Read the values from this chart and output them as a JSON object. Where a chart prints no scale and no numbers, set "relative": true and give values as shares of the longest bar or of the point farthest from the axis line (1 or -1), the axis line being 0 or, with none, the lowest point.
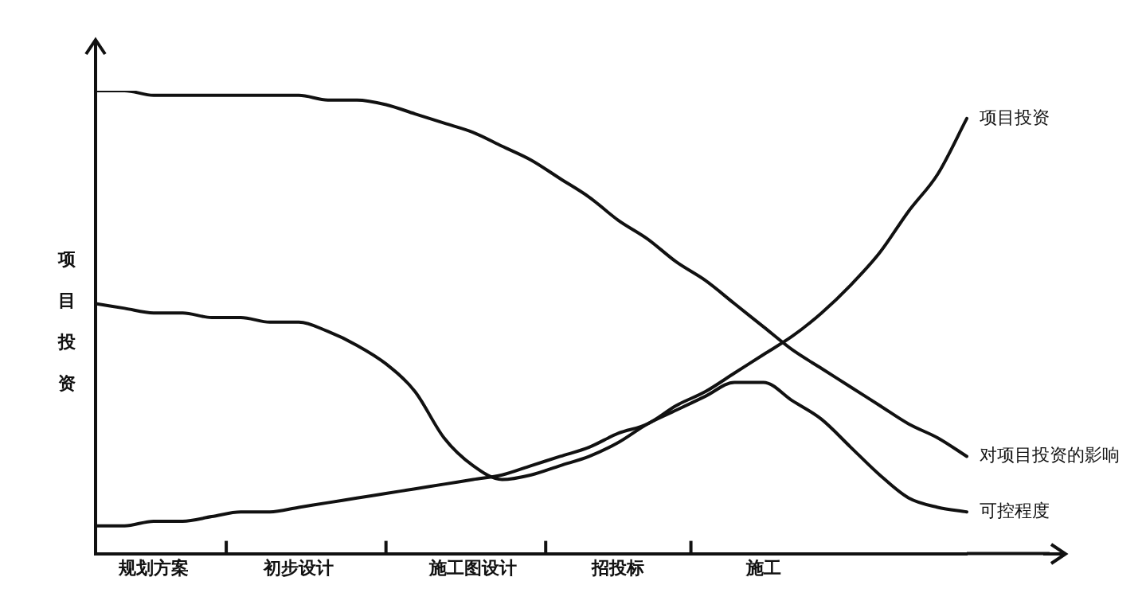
{
  "chart_data": {
    "type": "line",
    "relative": true,
    "ylabel": "项目投资",
    "grid": false,
    "legend": false,
    "marker": "none",
    "line_style": "solid",
    "categories": [
      null,
      null,
      "规划方案",
      null,
      null,
      null,
      null,
      "初步设计",
      null,
      null,
      null,
      null,
      null,
      "施工图设计",
      null,
      null,
      null,
      null,
      "招投标",
      null,
      null,
      null,
      null,
      "施工",
      null,
      null,
      null,
      null,
      null,
      null,
      null
    ],
    "series": [
      {
        "name": "项目投资",
        "color": "#111111",
        "values": [
          0.06,
          0.06,
          0.07,
          0.07,
          0.08,
          0.09,
          0.09,
          0.1,
          0.11,
          0.12,
          0.13,
          0.14,
          0.15,
          0.16,
          0.17,
          0.19,
          0.21,
          0.23,
          0.26,
          0.28,
          0.32,
          0.35,
          0.39,
          0.43,
          0.47,
          0.52,
          0.58,
          0.65,
          0.74,
          0.82,
          0.94
        ]
      },
      {
        "name": "对项目投资的影响",
        "color": "#111111",
        "values": [
          1,
          1,
          0.99,
          0.99,
          0.99,
          0.99,
          0.99,
          0.99,
          0.98,
          0.98,
          0.97,
          0.95,
          0.93,
          0.91,
          0.88,
          0.85,
          0.81,
          0.77,
          0.72,
          0.68,
          0.63,
          0.59,
          0.54,
          0.49,
          0.44,
          0.4,
          0.36,
          0.32,
          0.28,
          0.25,
          0.21
        ]
      },
      {
        "name": "可控程度",
        "color": "#111111",
        "values": [
          0.54,
          0.53,
          0.52,
          0.52,
          0.51,
          0.51,
          0.5,
          0.5,
          0.48,
          0.45,
          0.41,
          0.35,
          0.25,
          0.19,
          0.16,
          0.17,
          0.19,
          0.21,
          0.24,
          0.28,
          0.31,
          0.34,
          0.37,
          0.37,
          0.33,
          0.29,
          0.23,
          0.17,
          0.12,
          0.1,
          0.09
        ]
      }
    ]
  }
}
